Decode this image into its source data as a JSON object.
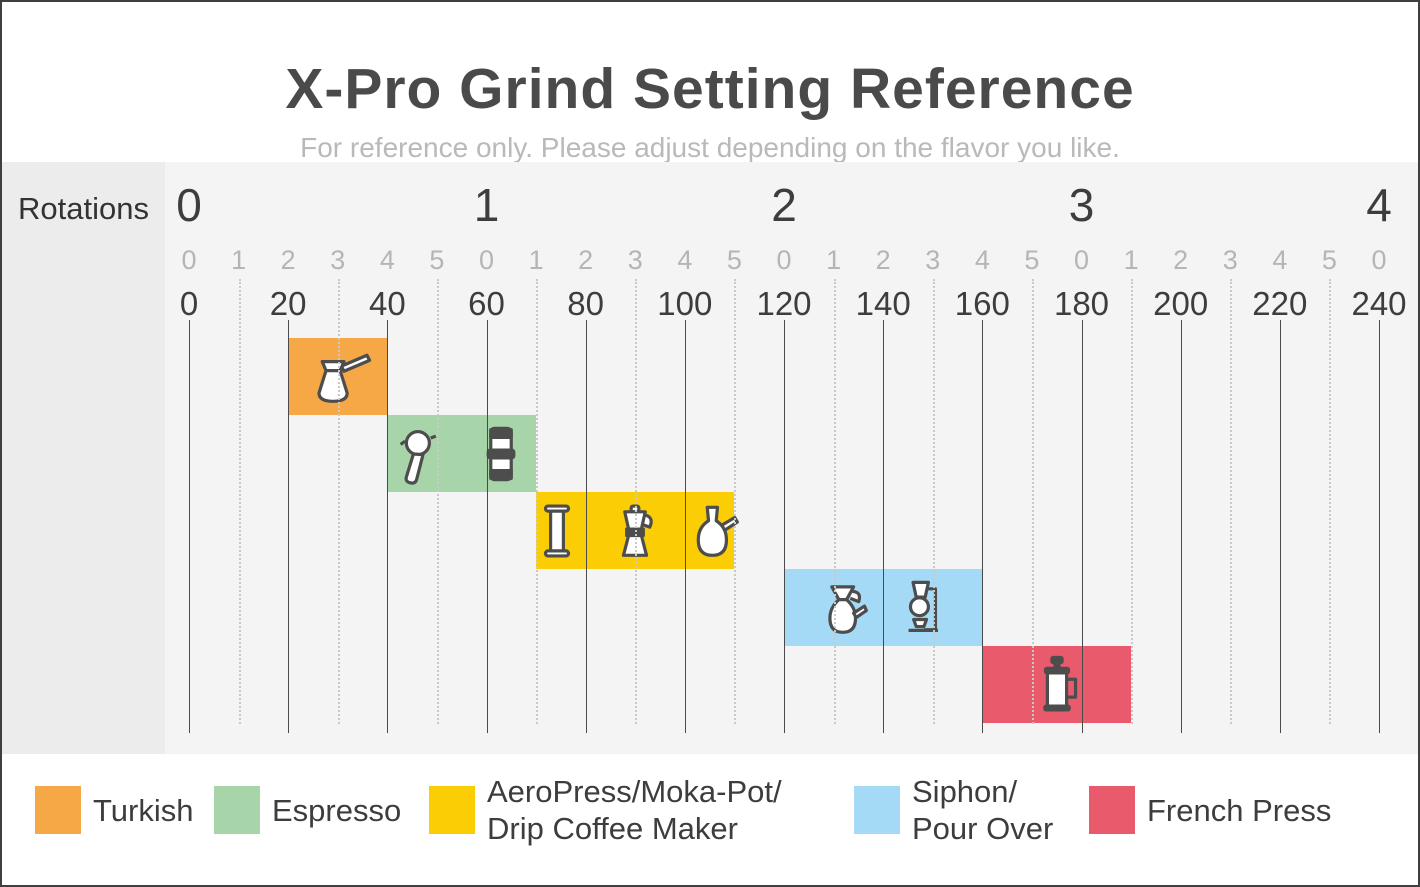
{
  "header": {
    "title": "X-Pro Grind Setting Reference",
    "subtitle": "For reference only. Please adjust depending on the flavor you like."
  },
  "chart_data": {
    "type": "bar",
    "subtype": "horizontal-step-range-chart",
    "title": "X-Pro Grind Setting Reference",
    "rotations_label": "Rotations",
    "rotation_axis": {
      "label_values": [
        0,
        1,
        2,
        3,
        4
      ],
      "clicks_per_rotation": 60
    },
    "sub_tick_values": [
      0,
      1,
      2,
      3,
      4,
      5,
      0,
      1,
      2,
      3,
      4,
      5,
      0,
      1,
      2,
      3,
      4,
      5,
      0,
      1,
      2,
      3,
      4,
      5,
      0
    ],
    "click_tick_values": [
      0,
      20,
      40,
      60,
      80,
      100,
      120,
      140,
      160,
      180,
      200,
      220,
      240
    ],
    "click_range": [
      0,
      240
    ],
    "grid": {
      "solid_every_clicks": 20,
      "dotted_at_odd_tens": true
    },
    "series": [
      {
        "name": "Turkish",
        "start_clicks": 20,
        "end_clicks": 40,
        "start_rotations": 0.33,
        "end_rotations": 0.67,
        "color": "#F5A845",
        "icons": [
          "cezve-icon"
        ]
      },
      {
        "name": "Espresso",
        "start_clicks": 40,
        "end_clicks": 70,
        "start_rotations": 0.67,
        "end_rotations": 1.17,
        "color": "#A8D4A9",
        "icons": [
          "portafilter-icon",
          "lever-espresso-icon"
        ]
      },
      {
        "name": "AeroPress/Moka-Pot/Drip Coffee Maker",
        "start_clicks": 70,
        "end_clicks": 110,
        "start_rotations": 1.17,
        "end_rotations": 1.83,
        "color": "#FACD05",
        "icons": [
          "aeropress-icon",
          "moka-pot-icon",
          "drip-carafe-icon"
        ]
      },
      {
        "name": "Siphon/Pour Over",
        "start_clicks": 120,
        "end_clicks": 160,
        "start_rotations": 2.0,
        "end_rotations": 2.67,
        "color": "#A4DAF5",
        "icons": [
          "pour-over-icon",
          "siphon-icon"
        ]
      },
      {
        "name": "French Press",
        "start_clicks": 160,
        "end_clicks": 190,
        "start_rotations": 2.67,
        "end_rotations": 3.17,
        "color": "#E95A6D",
        "icons": [
          "french-press-icon"
        ]
      }
    ],
    "legend": [
      {
        "lines": [
          "Turkish"
        ],
        "color": "#F5A845"
      },
      {
        "lines": [
          "Espresso"
        ],
        "color": "#A8D4A9"
      },
      {
        "lines": [
          "AeroPress/Moka-Pot/",
          "Drip Coffee Maker"
        ],
        "color": "#FACD05"
      },
      {
        "lines": [
          "Siphon/",
          "Pour Over"
        ],
        "color": "#A4DAF5"
      },
      {
        "lines": [
          "French Press"
        ],
        "color": "#E95A6D"
      }
    ],
    "legend_position": "bottom",
    "colors": {
      "plot_background": "#f4f4f4",
      "sidebar_background": "#ececec",
      "solid_gridline": "#4a4a4a",
      "dotted_gridline": "#c9c9c9",
      "title_text": "#4a4a4a",
      "subtitle_text": "#b9b9b9",
      "tick_text": "#3d3d3d",
      "sub_tick_text": "#b5b5b5"
    }
  }
}
